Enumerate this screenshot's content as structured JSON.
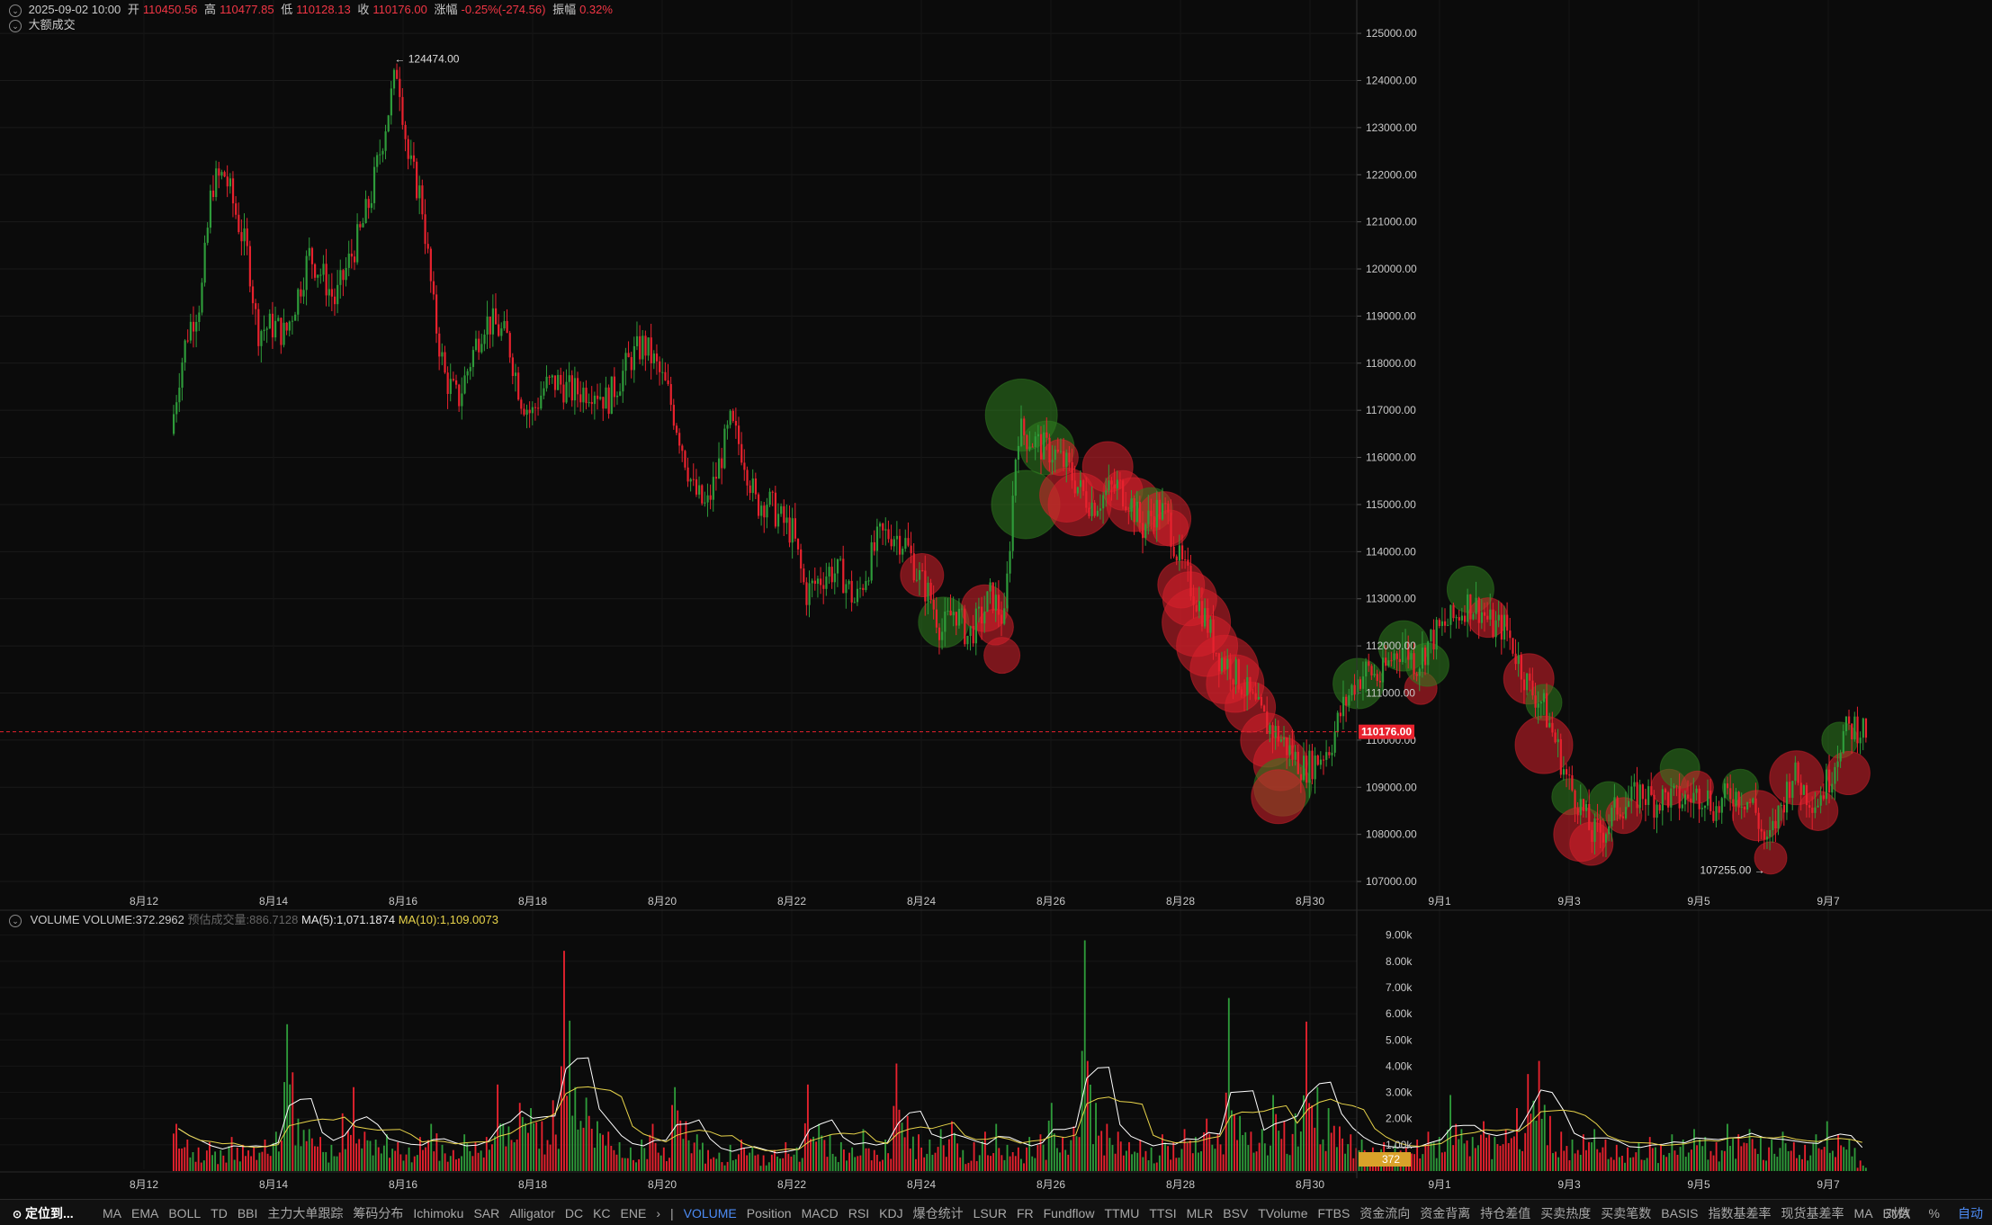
{
  "header": {
    "datetime": "2025-09-02 10:00",
    "open_label": "开",
    "open": "110450.56",
    "high_label": "高",
    "high": "110477.85",
    "low_label": "低",
    "low": "110128.13",
    "close_label": "收",
    "close": "110176.00",
    "change_label": "涨幅",
    "change": "-0.25%(-274.56)",
    "amp_label": "振幅",
    "amp": "0.32%",
    "big_trades": "大额成交"
  },
  "price_annotations": {
    "high_marker": "124474.00",
    "low_marker": "107255.00",
    "current_price": "110176.00"
  },
  "volume_header": {
    "name": "VOLUME",
    "volume": "VOLUME:372.2962",
    "estimate": "预估成交量:886.7128",
    "ma5": "MA(5):1,071.1874",
    "ma10": "MA(10):1,109.0073",
    "current_tag": "372"
  },
  "colors": {
    "up": "#2e9b3a",
    "down": "#e8222e",
    "ma5": "#ffffff",
    "ma10": "#e7d34a",
    "background": "#0b0b0b",
    "price_tag": "#e8222e",
    "volume_tag": "#d9a22a"
  },
  "chart_data": {
    "type": "candlestick",
    "price_axis": {
      "ticks": [
        "125000.00",
        "124000.00",
        "123000.00",
        "122000.00",
        "121000.00",
        "120000.00",
        "119000.00",
        "118000.00",
        "117000.00",
        "116000.00",
        "115000.00",
        "114000.00",
        "113000.00",
        "112000.00",
        "111000.00",
        "110000.00",
        "109000.00",
        "108000.00",
        "107000.00"
      ],
      "range": [
        106600,
        125250
      ]
    },
    "volume_axis": {
      "ticks": [
        "9.00k",
        "8.00k",
        "7.00k",
        "6.00k",
        "5.00k",
        "4.00k",
        "3.00k",
        "2.00k",
        "1.00k"
      ],
      "range": [
        0,
        9400
      ]
    },
    "date_ticks": [
      "8月12",
      "8月14",
      "8月16",
      "8月18",
      "8月20",
      "8月22",
      "8月24",
      "8月26",
      "8月28",
      "8月30",
      "9月1",
      "9月3",
      "9月5",
      "9月7"
    ],
    "close_path": [
      [
        8.0,
        116500
      ],
      [
        8.4,
        117800
      ],
      [
        8.8,
        118700
      ],
      [
        9.4,
        119400
      ],
      [
        9.9,
        121800
      ],
      [
        10.5,
        122000
      ],
      [
        11.0,
        121200
      ],
      [
        11.6,
        120200
      ],
      [
        12.0,
        118700
      ],
      [
        12.8,
        118800
      ],
      [
        13.3,
        118600
      ],
      [
        13.9,
        119500
      ],
      [
        14.4,
        120300
      ],
      [
        15.1,
        119800
      ],
      [
        15.6,
        119300
      ],
      [
        16.2,
        120100
      ],
      [
        16.8,
        120800
      ],
      [
        17.3,
        121600
      ],
      [
        17.9,
        123000
      ],
      [
        18.5,
        124300
      ],
      [
        19.0,
        122300
      ],
      [
        19.6,
        121500
      ],
      [
        20.2,
        119000
      ],
      [
        20.7,
        117700
      ],
      [
        21.3,
        117200
      ],
      [
        21.9,
        118100
      ],
      [
        22.5,
        118900
      ],
      [
        23.0,
        118800
      ],
      [
        23.6,
        118500
      ],
      [
        24.2,
        117300
      ],
      [
        24.7,
        116900
      ],
      [
        25.3,
        117500
      ],
      [
        25.9,
        117600
      ],
      [
        26.5,
        117400
      ],
      [
        27.0,
        117400
      ],
      [
        27.6,
        117500
      ],
      [
        28.2,
        117200
      ],
      [
        28.7,
        117600
      ],
      [
        29.3,
        118100
      ],
      [
        29.9,
        118400
      ],
      [
        30.4,
        118000
      ],
      [
        31.0,
        117400
      ],
      [
        31.6,
        116400
      ],
      [
        32.2,
        115300
      ],
      [
        32.8,
        114900
      ],
      [
        33.3,
        115700
      ],
      [
        33.9,
        116700
      ],
      [
        34.5,
        116100
      ],
      [
        35.1,
        115000
      ],
      [
        35.6,
        115100
      ],
      [
        36.2,
        114700
      ],
      [
        36.8,
        114400
      ],
      [
        37.4,
        113100
      ],
      [
        38.0,
        113400
      ],
      [
        38.5,
        113600
      ],
      [
        39.1,
        113500
      ],
      [
        39.7,
        112900
      ],
      [
        40.3,
        113700
      ],
      [
        40.8,
        114300
      ],
      [
        41.4,
        114400
      ],
      [
        42.0,
        114200
      ],
      [
        42.6,
        113500
      ],
      [
        43.2,
        113000
      ],
      [
        43.7,
        112300
      ],
      [
        44.3,
        112800
      ],
      [
        44.9,
        112200
      ],
      [
        45.5,
        112600
      ],
      [
        46.0,
        113100
      ],
      [
        46.6,
        112500
      ],
      [
        47.2,
        116600
      ],
      [
        47.8,
        116400
      ],
      [
        48.4,
        116200
      ],
      [
        48.9,
        116100
      ],
      [
        49.5,
        115800
      ],
      [
        50.1,
        115300
      ],
      [
        50.7,
        115000
      ],
      [
        51.2,
        115200
      ],
      [
        51.8,
        115400
      ],
      [
        52.4,
        115100
      ],
      [
        53.0,
        114500
      ],
      [
        53.6,
        114900
      ],
      [
        54.1,
        114800
      ],
      [
        54.7,
        113800
      ],
      [
        55.3,
        113200
      ],
      [
        55.9,
        112600
      ],
      [
        56.5,
        111800
      ],
      [
        57.0,
        111600
      ],
      [
        57.6,
        111200
      ],
      [
        58.2,
        110700
      ],
      [
        58.8,
        110300
      ],
      [
        59.3,
        110100
      ],
      [
        59.9,
        109700
      ],
      [
        60.5,
        109400
      ],
      [
        61.1,
        109600
      ],
      [
        61.7,
        109900
      ],
      [
        62.2,
        110600
      ],
      [
        62.8,
        111200
      ],
      [
        63.4,
        111500
      ],
      [
        64.0,
        111300
      ],
      [
        64.6,
        111800
      ],
      [
        65.1,
        112000
      ],
      [
        65.7,
        111600
      ],
      [
        66.3,
        112100
      ],
      [
        66.9,
        112400
      ],
      [
        67.5,
        112600
      ],
      [
        68.0,
        112900
      ],
      [
        68.6,
        112800
      ],
      [
        69.2,
        112400
      ],
      [
        69.8,
        112400
      ],
      [
        70.4,
        111700
      ],
      [
        70.9,
        111100
      ],
      [
        71.5,
        110800
      ],
      [
        72.1,
        110000
      ],
      [
        72.7,
        109100
      ],
      [
        73.2,
        108700
      ],
      [
        73.8,
        108000
      ],
      [
        74.4,
        108100
      ],
      [
        75.0,
        108600
      ],
      [
        75.6,
        108700
      ],
      [
        76.1,
        108900
      ],
      [
        76.7,
        108700
      ],
      [
        77.3,
        108800
      ],
      [
        77.9,
        108700
      ],
      [
        78.5,
        108800
      ],
      [
        79.0,
        108900
      ],
      [
        79.6,
        108500
      ],
      [
        80.2,
        108900
      ],
      [
        80.8,
        108800
      ],
      [
        81.3,
        108600
      ],
      [
        81.9,
        107700
      ],
      [
        82.5,
        108500
      ],
      [
        83.1,
        109300
      ],
      [
        83.7,
        108900
      ],
      [
        84.2,
        108700
      ],
      [
        84.8,
        109200
      ],
      [
        85.4,
        110100
      ],
      [
        86.0,
        110300
      ],
      [
        86.5,
        110200
      ]
    ],
    "price_range": {
      "high": 124474,
      "low": 107255
    },
    "big_trades": [
      [
        47.3,
        116900,
        40,
        "up"
      ],
      [
        47.5,
        115000,
        38,
        "up"
      ],
      [
        48.5,
        116200,
        30,
        "up"
      ],
      [
        49.1,
        116000,
        20,
        "down"
      ],
      [
        49.4,
        115200,
        30,
        "down"
      ],
      [
        50.0,
        115000,
        35,
        "down"
      ],
      [
        51.3,
        115800,
        28,
        "down"
      ],
      [
        52.0,
        115300,
        22,
        "down"
      ],
      [
        52.5,
        115000,
        30,
        "down"
      ],
      [
        53.3,
        114900,
        24,
        "up"
      ],
      [
        53.9,
        114700,
        30,
        "down"
      ],
      [
        54.2,
        114500,
        20,
        "down"
      ],
      [
        54.7,
        113300,
        26,
        "down"
      ],
      [
        55.1,
        113000,
        30,
        "down"
      ],
      [
        55.4,
        112500,
        38,
        "down"
      ],
      [
        55.9,
        112000,
        34,
        "down"
      ],
      [
        56.7,
        111500,
        38,
        "down"
      ],
      [
        57.2,
        111200,
        32,
        "down"
      ],
      [
        57.9,
        110700,
        28,
        "down"
      ],
      [
        58.7,
        110000,
        30,
        "down"
      ],
      [
        59.3,
        109500,
        30,
        "down"
      ],
      [
        59.4,
        109000,
        32,
        "up"
      ],
      [
        59.2,
        108800,
        30,
        "down"
      ],
      [
        42.7,
        113500,
        24,
        "down"
      ],
      [
        43.7,
        112500,
        28,
        "up"
      ],
      [
        45.6,
        112800,
        26,
        "down"
      ],
      [
        46.1,
        112400,
        20,
        "down"
      ],
      [
        46.4,
        111800,
        20,
        "down"
      ],
      [
        62.9,
        111200,
        28,
        "up"
      ],
      [
        65.0,
        112000,
        28,
        "up"
      ],
      [
        65.8,
        111100,
        18,
        "down"
      ],
      [
        66.1,
        111600,
        24,
        "up"
      ],
      [
        68.1,
        113200,
        26,
        "up"
      ],
      [
        68.9,
        112600,
        22,
        "down"
      ],
      [
        70.8,
        111300,
        28,
        "down"
      ],
      [
        71.5,
        110800,
        20,
        "up"
      ],
      [
        71.5,
        109900,
        32,
        "down"
      ],
      [
        72.7,
        108800,
        20,
        "up"
      ],
      [
        73.2,
        108000,
        30,
        "down"
      ],
      [
        73.7,
        107800,
        24,
        "down"
      ],
      [
        74.5,
        108700,
        22,
        "up"
      ],
      [
        75.2,
        108400,
        20,
        "down"
      ],
      [
        77.3,
        109000,
        20,
        "down"
      ],
      [
        77.8,
        109400,
        22,
        "up"
      ],
      [
        78.6,
        109000,
        18,
        "down"
      ],
      [
        80.6,
        109000,
        20,
        "up"
      ],
      [
        81.4,
        108400,
        28,
        "down"
      ],
      [
        82.0,
        107500,
        18,
        "down"
      ],
      [
        83.2,
        109200,
        30,
        "down"
      ],
      [
        84.2,
        108500,
        22,
        "down"
      ],
      [
        85.2,
        110000,
        20,
        "up"
      ],
      [
        85.6,
        109300,
        24,
        "down"
      ]
    ],
    "volumes": [
      1.8,
      1.2,
      0.9,
      1.1,
      0.8,
      1.3,
      1.0,
      0.9,
      1.2,
      1.5,
      5.6,
      2.0,
      1.6,
      1.3,
      1.0,
      2.2,
      3.2,
      1.5,
      1.2,
      1.4,
      1.1,
      0.9,
      1.3,
      1.8,
      1.0,
      0.8,
      1.4,
      1.1,
      1.3,
      3.3,
      1.7,
      2.6,
      2.4,
      1.9,
      2.7,
      8.4,
      3.2,
      2.8,
      1.9,
      1.5,
      1.1,
      0.9,
      1.2,
      1.8,
      0.9,
      3.2,
      1.9,
      1.4,
      0.8,
      0.7,
      1.0,
      1.2,
      0.9,
      0.6,
      0.8,
      1.1,
      0.9,
      3.3,
      1.8,
      1.4,
      1.1,
      0.9,
      1.6,
      0.8,
      1.2,
      4.1,
      2.1,
      1.4,
      1.2,
      1.6,
      1.9,
      0.8,
      1.1,
      1.5,
      1.8,
      1.0,
      0.9,
      1.3,
      1.4,
      2.6,
      1.3,
      1.7,
      8.8,
      2.6,
      1.8,
      1.5,
      1.1,
      1.2,
      0.9,
      1.4,
      1.1,
      1.6,
      1.3,
      2.0,
      1.4,
      6.6,
      2.1,
      1.5,
      1.6,
      2.9,
      1.9,
      2.2,
      5.7,
      3.2,
      2.4,
      1.7,
      1.4,
      1.2,
      0.9,
      1.1,
      1.0,
      0.9,
      1.2,
      1.5,
      1.3,
      2.9,
      1.6,
      1.3,
      1.9,
      1.3,
      1.6,
      2.4,
      3.7,
      4.2,
      2.1,
      1.5,
      1.2,
      1.4,
      1.6,
      1.2,
      1.0,
      0.9,
      1.1,
      1.3,
      1.0,
      1.4,
      1.2,
      1.6,
      1.3,
      1.1,
      1.8,
      1.4,
      1.6,
      1.3,
      1.2,
      1.5,
      1.1,
      1.0,
      1.4,
      1.9,
      1.4,
      1.2,
      0.4
    ]
  },
  "toolbar": {
    "locate": "定位到...",
    "indicators": [
      "MA",
      "EMA",
      "BOLL",
      "TD",
      "BBI",
      "主力大单跟踪",
      "筹码分布",
      "Ichimoku",
      "SAR",
      "Alligator",
      "DC",
      "KC",
      "ENE"
    ],
    "more": "›",
    "sub_indicators": [
      "VOLUME",
      "Position",
      "MACD",
      "RSI",
      "KDJ",
      "爆仓统计",
      "LSUR",
      "FR",
      "Fundflow",
      "TTMU",
      "TTSI",
      "MLR",
      "BSV",
      "TVolume",
      "FTBS",
      "资金流向",
      "资金背离",
      "持仓差值",
      "买卖热度",
      "买卖笔数",
      "BASIS",
      "指数基差率",
      "现货基差率",
      "MA",
      "EMA"
    ],
    "right": [
      "对数",
      "%",
      "自动"
    ]
  }
}
